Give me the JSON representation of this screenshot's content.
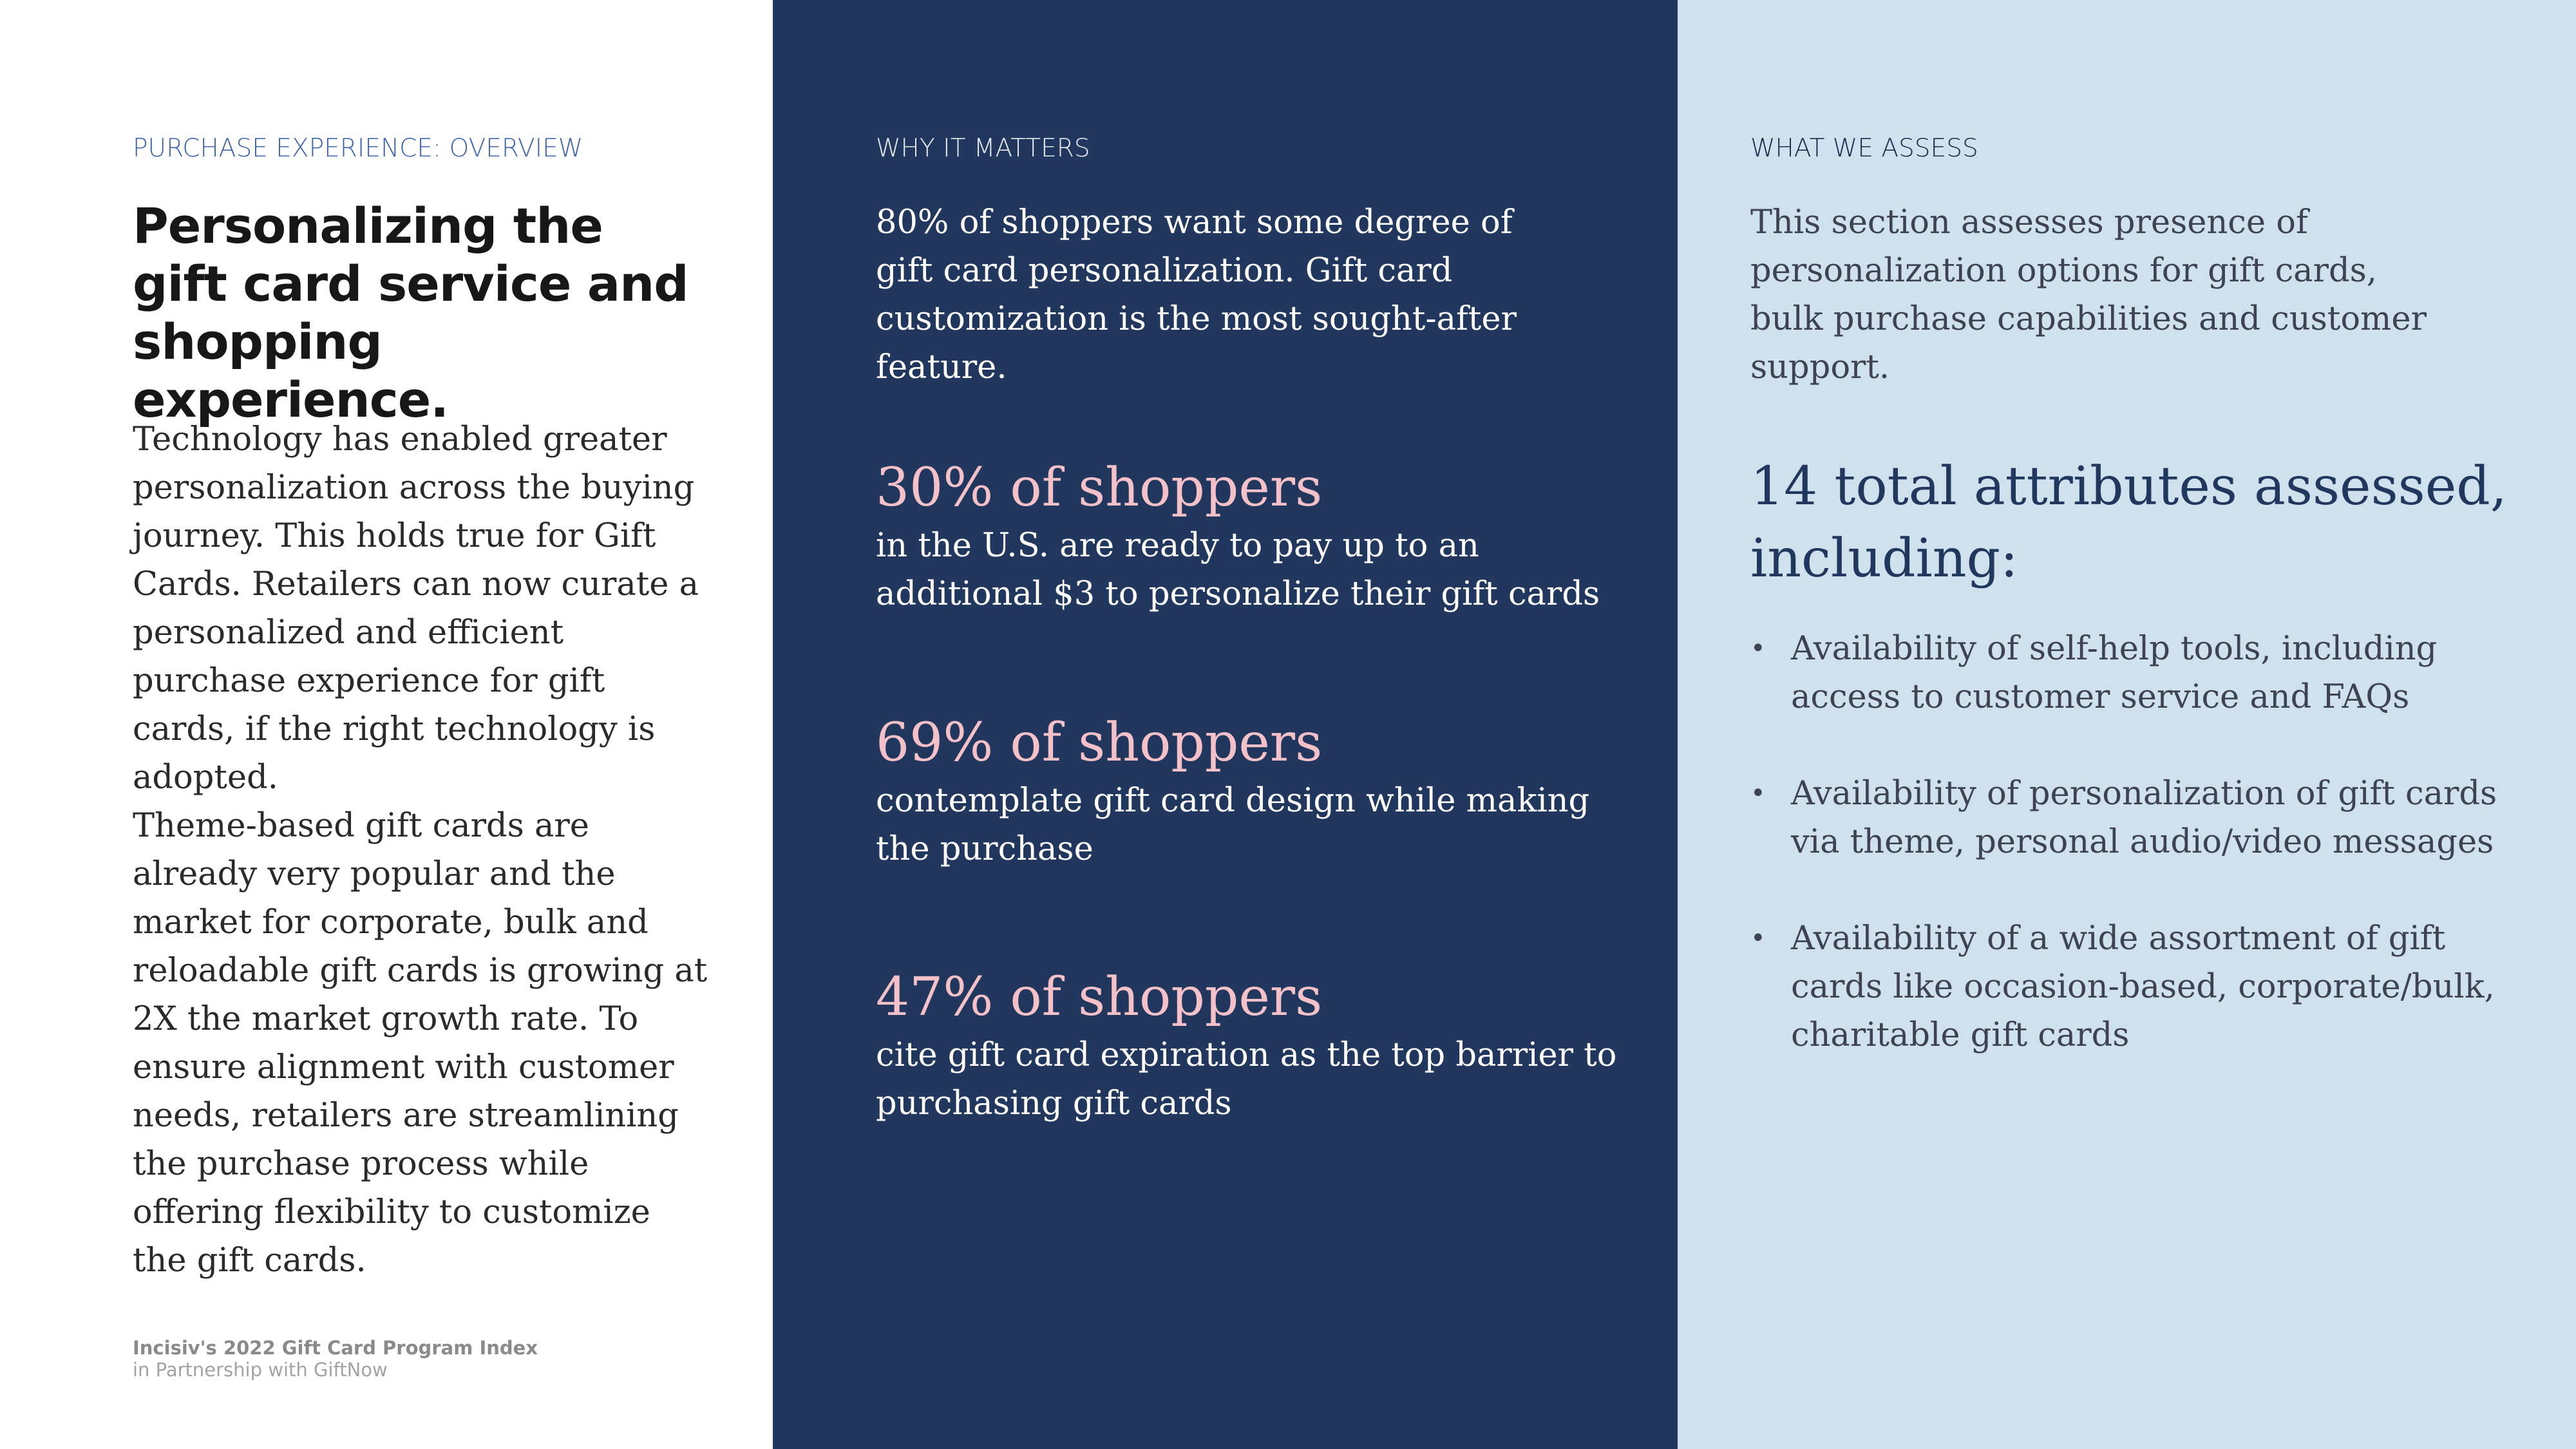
{
  "overview": {
    "eyebrow": "PURCHASE EXPERIENCE: OVERVIEW",
    "headline": "Personalizing the gift card service and shopping experience.",
    "paragraph_1": "Technology has enabled greater personalization across the buying journey.  This holds true for Gift Cards.  Retailers can now curate a personalized and efficient purchase experience for gift cards, if the right technology is adopted.",
    "paragraph_2": "Theme-based gift cards are already very popular and the market for corporate, bulk and reloadable gift cards is growing at 2X the market growth rate. To ensure alignment with customer needs, retailers are streamlining the purchase process while offering flexibility to customize the gift cards."
  },
  "footer": {
    "title": "Incisiv's 2022 Gift Card Program Index",
    "subtitle": "in Partnership with GiftNow"
  },
  "why_it_matters": {
    "eyebrow": "WHY IT MATTERS",
    "intro": "80% of shoppers want some degree of gift card personalization. Gift card customization is the most sought-after feature.",
    "stats": [
      {
        "value": "30% of shoppers",
        "description": "in the U.S. are ready to pay up to an additional $3 to personalize their gift cards"
      },
      {
        "value": "69% of shoppers",
        "description": "contemplate gift card design while making the purchase"
      },
      {
        "value": "47% of shoppers",
        "description": "cite gift card expiration as the top barrier to purchasing gift cards"
      }
    ]
  },
  "what_we_assess": {
    "eyebrow": "WHAT WE ASSESS",
    "intro": "This section assesses presence of personalization options for gift cards, bulk purchase capabilities and customer support.",
    "heading": "14 total attributes assessed, including:",
    "bullet_glyph": "•",
    "bullets": [
      "Availability of self-help tools, including access to customer service and FAQs",
      "Availability of personalization of gift cards via theme, personal audio/video messages",
      "Availability of a wide assortment of gift cards like occasion-based, corporate/bulk, charitable gift cards"
    ]
  },
  "colors": {
    "mid_background": "#22375d",
    "right_background": "#cfe1ed",
    "stat_accent": "#f4c1c9",
    "eyebrow_blue": "#3f64b0"
  }
}
